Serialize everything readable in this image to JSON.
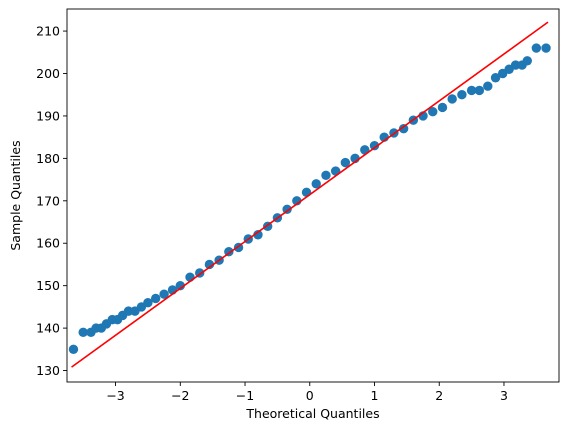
{
  "chart_data": {
    "type": "scatter",
    "title": "",
    "xlabel": "Theoretical Quantiles",
    "ylabel": "Sample Quantiles",
    "xlim": [
      -3.75,
      3.85
    ],
    "ylim": [
      127.3,
      215.2
    ],
    "xticks": [
      -3,
      -2,
      -1,
      0,
      1,
      2,
      3
    ],
    "yticks": [
      130,
      140,
      150,
      160,
      170,
      180,
      190,
      200,
      210
    ],
    "grid": false,
    "legend": "none",
    "series": [
      {
        "kind": "points",
        "color": "#1f77b4",
        "x": [
          -3.65,
          -3.5,
          -3.38,
          -3.3,
          -3.22,
          -3.14,
          -3.05,
          -2.97,
          -2.89,
          -2.8,
          -2.7,
          -2.6,
          -2.5,
          -2.38,
          -2.25,
          -2.12,
          -2.0,
          -1.85,
          -1.7,
          -1.55,
          -1.4,
          -1.25,
          -1.1,
          -0.95,
          -0.8,
          -0.65,
          -0.5,
          -0.35,
          -0.2,
          -0.05,
          0.1,
          0.25,
          0.4,
          0.55,
          0.7,
          0.85,
          1.0,
          1.15,
          1.3,
          1.45,
          1.6,
          1.75,
          1.9,
          2.05,
          2.2,
          2.35,
          2.5,
          2.62,
          2.75,
          2.87,
          2.98,
          3.08,
          3.18,
          3.28,
          3.36,
          3.5,
          3.65
        ],
        "y": [
          135,
          139,
          139,
          140,
          140,
          141,
          142,
          142,
          143,
          144,
          144,
          145,
          146,
          147,
          148,
          149,
          150,
          152,
          153,
          155,
          156,
          158,
          159,
          161,
          162,
          164,
          166,
          168,
          170,
          172,
          174,
          176,
          177,
          179,
          180,
          182,
          183,
          185,
          186,
          187,
          189,
          190,
          191,
          192,
          194,
          195,
          196,
          196,
          197,
          199,
          200,
          201,
          202,
          202,
          203,
          206,
          206
        ]
      },
      {
        "kind": "line",
        "color": "#ff0000",
        "x": [
          -3.68,
          3.68
        ],
        "y": [
          130.8,
          212.1
        ]
      }
    ]
  }
}
